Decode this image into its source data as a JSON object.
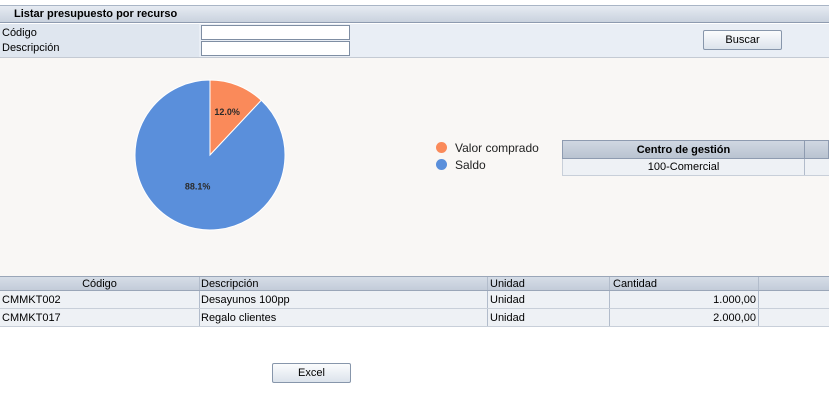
{
  "header": {
    "title": "Listar presupuesto por recurso"
  },
  "filters": {
    "codigo_label": "Código",
    "codigo_value": "",
    "descripcion_label": "Descripción",
    "descripcion_value": "",
    "search_button": "Buscar"
  },
  "chart_data": {
    "type": "pie",
    "slices": [
      {
        "name": "Valor comprado",
        "value": 12.0,
        "label": "12.0%",
        "color": "#fa8a5a"
      },
      {
        "name": "Saldo",
        "value": 88.1,
        "label": "88.1%",
        "color": "#5a8fdb"
      }
    ],
    "legend": [
      "Valor comprado",
      "Saldo"
    ],
    "legend_position": "right"
  },
  "centro_gestion": {
    "header": "Centro de gestión",
    "value": "100-Comercial"
  },
  "grid": {
    "columns": [
      "Código",
      "Descripción",
      "Unidad",
      "Cantidad"
    ],
    "rows": [
      {
        "codigo": "CMMKT002",
        "descripcion": "Desayunos 100pp",
        "unidad": "Unidad",
        "cantidad": "1.000,00"
      },
      {
        "codigo": "CMMKT017",
        "descripcion": "Regalo clientes",
        "unidad": "Unidad",
        "cantidad": "2.000,00"
      }
    ]
  },
  "footer": {
    "excel_button": "Excel"
  }
}
